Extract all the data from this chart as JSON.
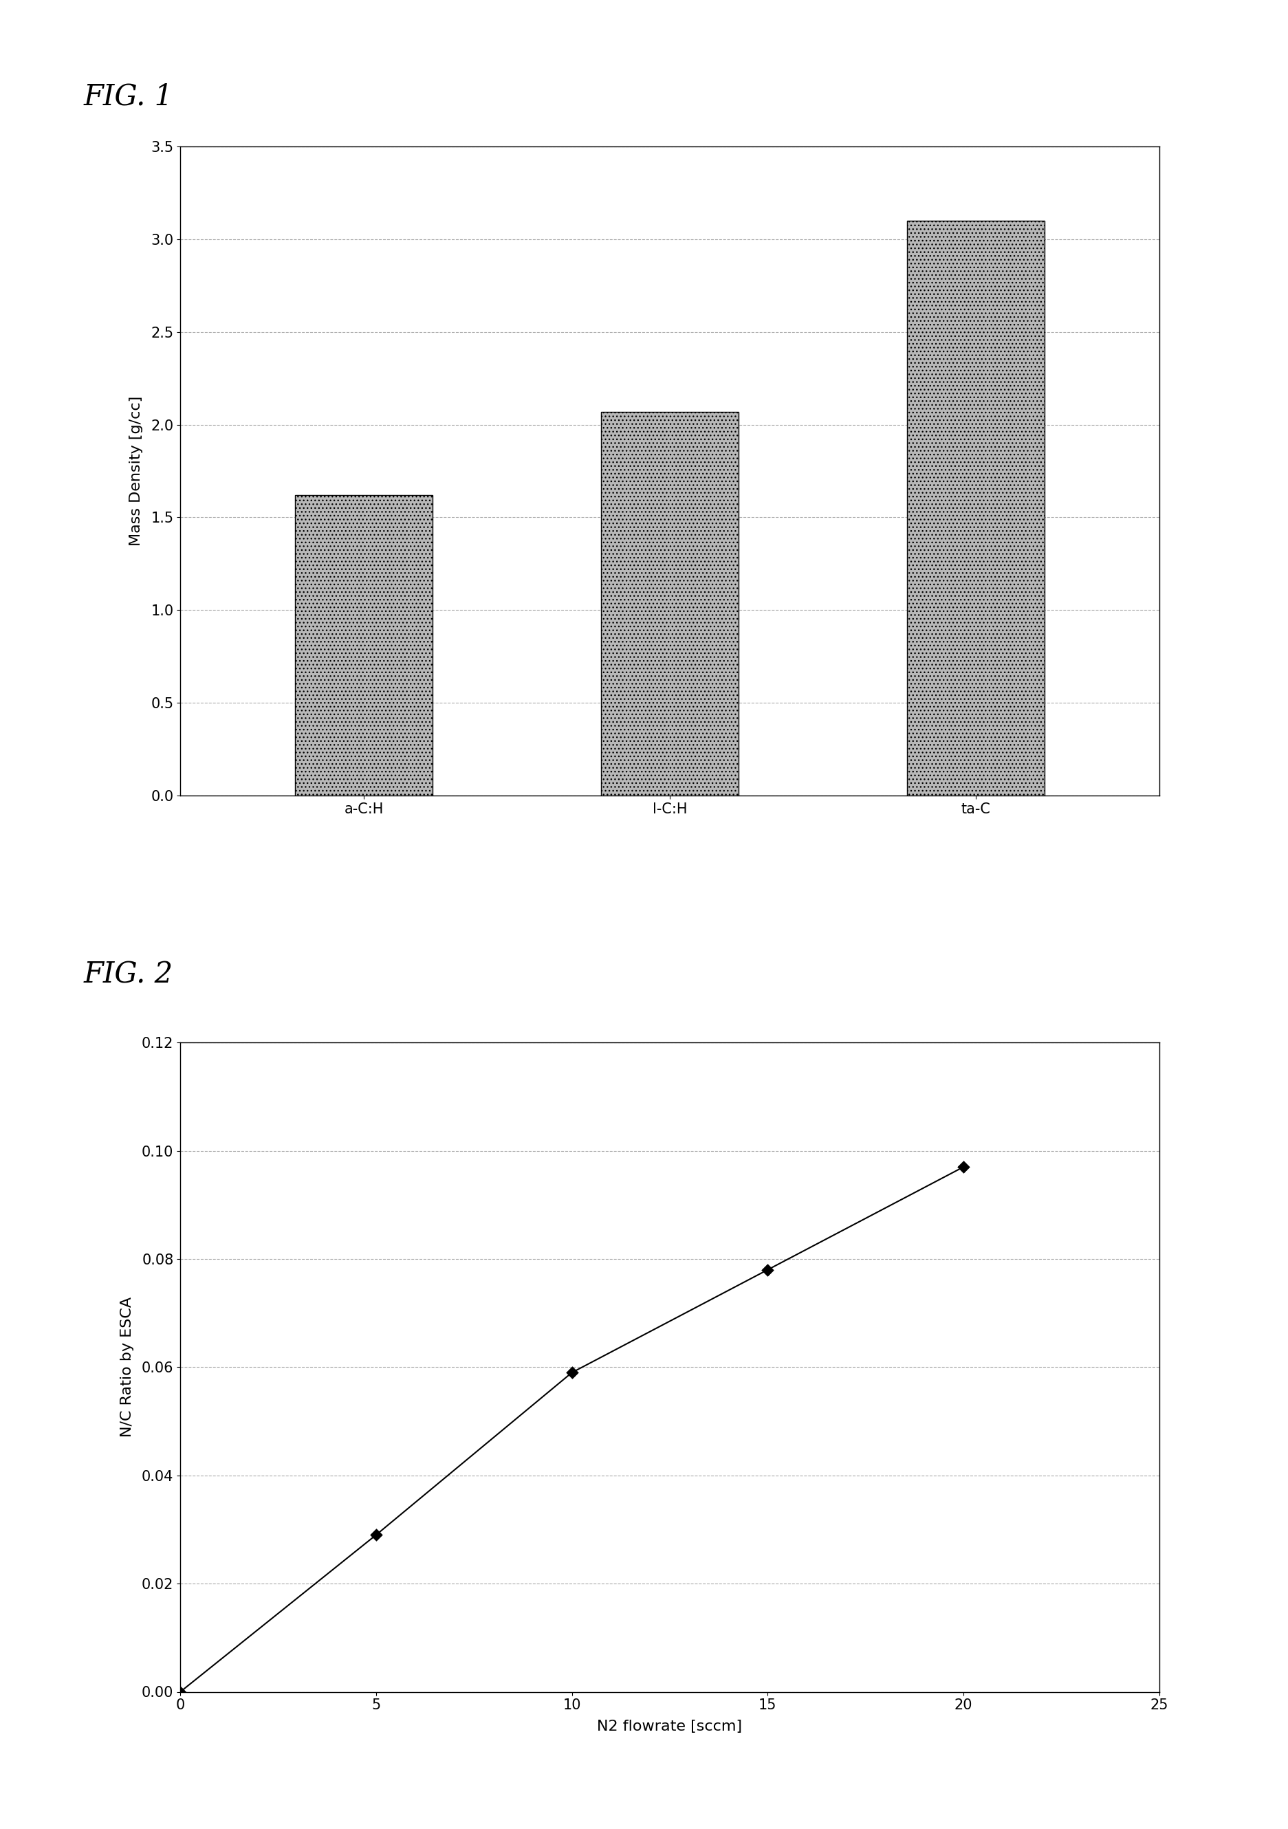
{
  "fig1": {
    "label": "FIG. 1",
    "categories": [
      "a-C:H",
      "l-C:H",
      "ta-C"
    ],
    "values": [
      1.62,
      2.07,
      3.1
    ],
    "ylabel": "Mass Density [g/cc]",
    "ylim": [
      0.0,
      3.5
    ],
    "yticks": [
      0.0,
      0.5,
      1.0,
      1.5,
      2.0,
      2.5,
      3.0,
      3.5
    ],
    "bar_color": "#b8b8b8",
    "bar_edge_color": "#000000",
    "grid_color": "#aaaaaa",
    "bar_width": 0.45
  },
  "fig2": {
    "label": "FIG. 2",
    "x": [
      0,
      5,
      10,
      15,
      20
    ],
    "y": [
      0.0,
      0.029,
      0.059,
      0.078,
      0.097
    ],
    "xlabel": "N2 flowrate [sccm]",
    "ylabel": "N/C Ratio by ESCA",
    "xlim": [
      0,
      25
    ],
    "ylim": [
      0,
      0.12
    ],
    "xticks": [
      0,
      5,
      10,
      15,
      20,
      25
    ],
    "yticks": [
      0,
      0.02,
      0.04,
      0.06,
      0.08,
      0.1,
      0.12
    ],
    "line_color": "#000000",
    "marker_color": "#000000",
    "grid_color": "#aaaaaa"
  },
  "bg_color": "#ffffff",
  "fig_label_fontsize": 30,
  "axis_label_fontsize": 16,
  "tick_fontsize": 15
}
